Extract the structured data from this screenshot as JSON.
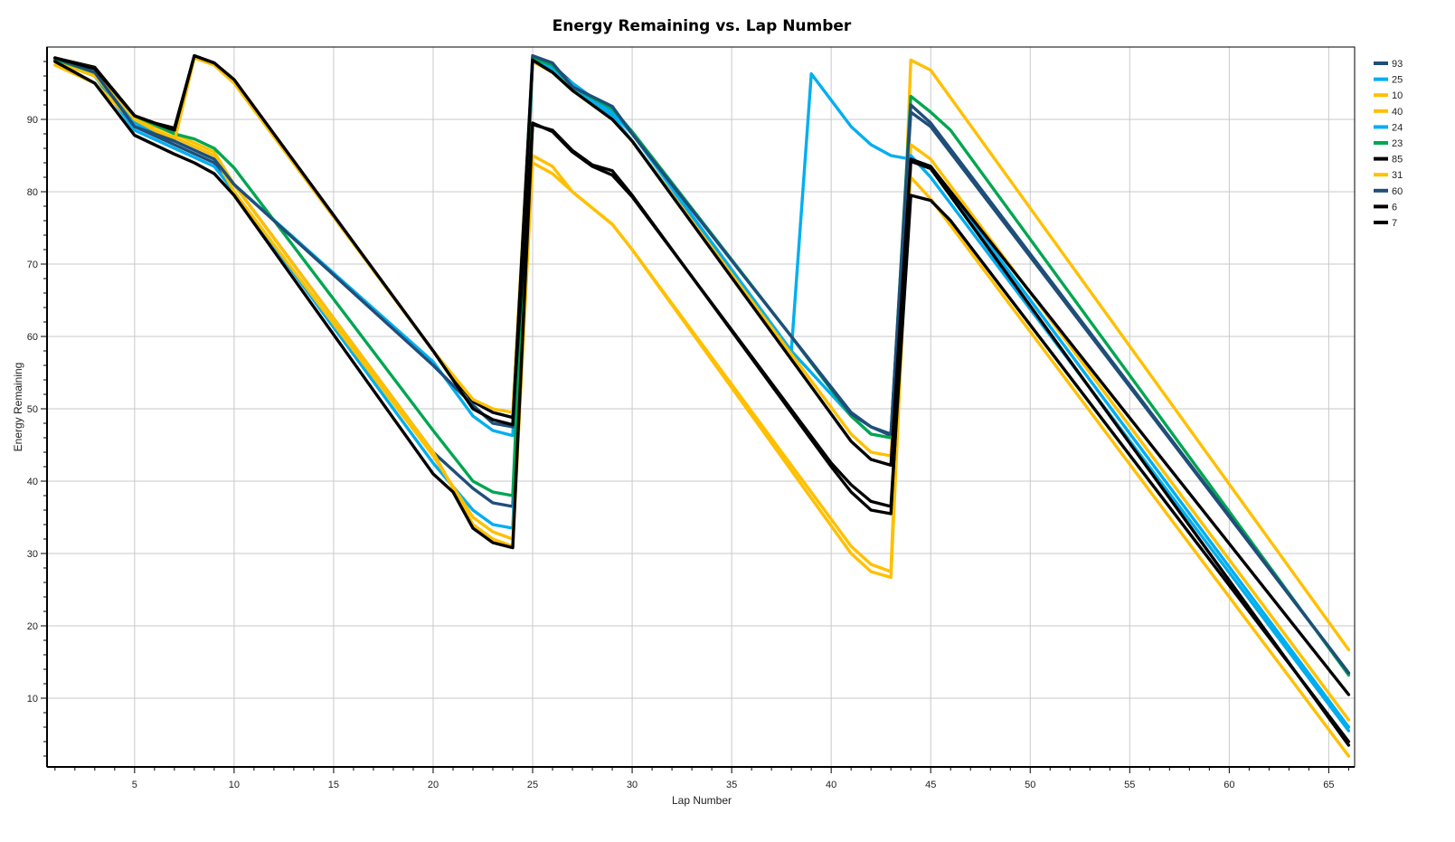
{
  "chart_data": {
    "type": "line",
    "title": "Energy Remaining vs. Lap Number",
    "xlabel": "Lap Number",
    "ylabel": "Energy Remaining",
    "xlim": [
      0.6,
      66.3
    ],
    "ylim": [
      0.5,
      100
    ],
    "xticks": [
      5,
      10,
      15,
      20,
      25,
      30,
      35,
      40,
      45,
      50,
      55,
      60,
      65
    ],
    "yticks": [
      10,
      20,
      30,
      40,
      50,
      60,
      70,
      80,
      90
    ],
    "grid": true,
    "legend_position": "right",
    "series": [
      {
        "name": "93",
        "color": "#1f4e79",
        "points": [
          [
            1,
            98.2
          ],
          [
            3,
            96.0
          ],
          [
            5,
            89.0
          ],
          [
            7,
            86.5
          ],
          [
            9,
            84.0
          ],
          [
            10,
            81
          ],
          [
            20,
            44
          ],
          [
            22,
            39.0
          ],
          [
            23,
            37.0
          ],
          [
            24,
            36.5
          ],
          [
            25,
            98.5
          ],
          [
            26,
            97.5
          ],
          [
            27,
            95.0
          ],
          [
            29,
            91.0
          ],
          [
            30,
            88
          ],
          [
            38,
            60
          ],
          [
            41,
            49.5
          ],
          [
            42,
            47.5
          ],
          [
            43,
            46.3
          ],
          [
            44,
            91.0
          ],
          [
            45,
            89.0
          ],
          [
            66,
            13.5
          ]
        ]
      },
      {
        "name": "25",
        "color": "#00aeef",
        "points": [
          [
            1,
            98.0
          ],
          [
            3,
            96.0
          ],
          [
            5,
            88.5
          ],
          [
            7,
            86.0
          ],
          [
            9,
            83.5
          ],
          [
            10,
            80
          ],
          [
            20,
            42.5
          ],
          [
            22,
            36.0
          ],
          [
            23,
            34.0
          ],
          [
            24,
            33.5
          ],
          [
            25,
            98.3
          ],
          [
            26,
            97.0
          ],
          [
            27,
            95.0
          ],
          [
            29,
            91.0
          ],
          [
            30,
            88
          ],
          [
            38,
            58.0
          ],
          [
            39,
            96.3
          ],
          [
            41,
            89.0
          ],
          [
            42,
            86.5
          ],
          [
            43,
            85.0
          ],
          [
            44,
            84.5
          ],
          [
            45,
            83.5
          ],
          [
            66,
            6.0
          ]
        ]
      },
      {
        "name": "10",
        "color": "#ffc000",
        "points": [
          [
            1,
            97.5
          ],
          [
            3,
            95.0
          ],
          [
            5,
            89.5
          ],
          [
            7,
            87.5
          ],
          [
            9,
            85.0
          ],
          [
            10,
            80
          ],
          [
            20,
            43.5
          ],
          [
            22,
            35.0
          ],
          [
            23,
            33.0
          ],
          [
            24,
            32.0
          ],
          [
            25,
            84.0
          ],
          [
            26,
            82.5
          ],
          [
            27,
            80.0
          ],
          [
            29,
            75.5
          ],
          [
            30,
            72
          ],
          [
            41,
            31.0
          ],
          [
            42,
            28.5
          ],
          [
            43,
            27.5
          ],
          [
            44,
            98.2
          ],
          [
            45,
            96.8
          ],
          [
            66,
            16.7
          ]
        ]
      },
      {
        "name": "40",
        "color": "#ffc000",
        "points": [
          [
            1,
            98.0
          ],
          [
            3,
            96.0
          ],
          [
            5,
            90.0
          ],
          [
            7,
            88.0
          ],
          [
            9,
            85.5
          ],
          [
            10,
            81
          ],
          [
            20,
            44
          ],
          [
            22,
            34.0
          ],
          [
            23,
            32.0
          ],
          [
            24,
            31.0
          ],
          [
            25,
            85.0
          ],
          [
            26,
            83.5
          ],
          [
            27,
            80.0
          ],
          [
            29,
            75.5
          ],
          [
            30,
            72
          ],
          [
            41,
            30.0
          ],
          [
            42,
            27.5
          ],
          [
            43,
            26.7
          ],
          [
            44,
            86.5
          ],
          [
            45,
            84.5
          ],
          [
            66,
            7.0
          ]
        ]
      },
      {
        "name": "24",
        "color": "#00aeef",
        "points": [
          [
            1,
            98.3
          ],
          [
            3,
            96.5
          ],
          [
            5,
            89.5
          ],
          [
            7,
            87.0
          ],
          [
            9,
            84.5
          ],
          [
            10,
            81
          ],
          [
            20,
            56.5
          ],
          [
            22,
            49.0
          ],
          [
            23,
            47.0
          ],
          [
            24,
            46.3
          ],
          [
            25,
            98.5
          ],
          [
            26,
            97.0
          ],
          [
            27,
            94.5
          ],
          [
            29,
            90.5
          ],
          [
            30,
            87
          ],
          [
            38,
            58.0
          ],
          [
            41,
            49.0
          ],
          [
            42,
            46.5
          ],
          [
            43,
            46.0
          ],
          [
            44,
            85.0
          ],
          [
            45,
            82.0
          ],
          [
            66,
            5.5
          ]
        ]
      },
      {
        "name": "23",
        "color": "#00a651",
        "points": [
          [
            1,
            98.3
          ],
          [
            3,
            96.5
          ],
          [
            5,
            90.5
          ],
          [
            7,
            88.0
          ],
          [
            8,
            87.3
          ],
          [
            9,
            86.0
          ],
          [
            10,
            83.3
          ],
          [
            20,
            47.0
          ],
          [
            22,
            40.0
          ],
          [
            23,
            38.5
          ],
          [
            24,
            38.0
          ],
          [
            25,
            98.5
          ],
          [
            26,
            97.5
          ],
          [
            27,
            94.5
          ],
          [
            29,
            91.5
          ],
          [
            30,
            88.3
          ],
          [
            38,
            60
          ],
          [
            41,
            49.0
          ],
          [
            42,
            46.5
          ],
          [
            43,
            46.0
          ],
          [
            44,
            93.2
          ],
          [
            45,
            91.0
          ],
          [
            46,
            88.5
          ],
          [
            66,
            13.2
          ]
        ]
      },
      {
        "name": "85",
        "color": "#000000",
        "points": [
          [
            1,
            98.5
          ],
          [
            3,
            97.2
          ],
          [
            5,
            90.5
          ],
          [
            6,
            89.5
          ],
          [
            7,
            88.8
          ],
          [
            8,
            98.8
          ],
          [
            9,
            97.8
          ],
          [
            10,
            95.3
          ],
          [
            20,
            58.0
          ],
          [
            22,
            51.0
          ],
          [
            23,
            49.5
          ],
          [
            24,
            48.8
          ],
          [
            25,
            89.3
          ],
          [
            26,
            88.5
          ],
          [
            27,
            85.7
          ],
          [
            28,
            83.7
          ],
          [
            29,
            82.9
          ],
          [
            30,
            79.5
          ],
          [
            40,
            42.0
          ],
          [
            41,
            38.5
          ],
          [
            42,
            36.0
          ],
          [
            43,
            35.5
          ],
          [
            44,
            84.2
          ],
          [
            45,
            83.2
          ],
          [
            66,
            3.5
          ]
        ]
      },
      {
        "name": "31",
        "color": "#ffc000",
        "points": [
          [
            1,
            98.5
          ],
          [
            3,
            97.0
          ],
          [
            5,
            90.0
          ],
          [
            7,
            87.0
          ],
          [
            8,
            98.5
          ],
          [
            9,
            97.5
          ],
          [
            10,
            95.0
          ],
          [
            20,
            58.0
          ],
          [
            22,
            51.3
          ],
          [
            23,
            50.0
          ],
          [
            24,
            49.5
          ],
          [
            25,
            98.0
          ],
          [
            26,
            96.5
          ],
          [
            27,
            94.0
          ],
          [
            29,
            90.0
          ],
          [
            30,
            87
          ],
          [
            41,
            46.5
          ],
          [
            42,
            44.0
          ],
          [
            43,
            43.5
          ],
          [
            44,
            82.0
          ],
          [
            45,
            79.0
          ],
          [
            66,
            2.0
          ]
        ]
      },
      {
        "name": "60",
        "color": "#1f4e79",
        "points": [
          [
            1,
            98.5
          ],
          [
            3,
            96.5
          ],
          [
            5,
            89.0
          ],
          [
            7,
            87.0
          ],
          [
            9,
            84.5
          ],
          [
            10,
            81
          ],
          [
            20,
            56
          ],
          [
            22,
            50.5
          ],
          [
            23,
            48.0
          ],
          [
            24,
            47.5
          ],
          [
            25,
            98.8
          ],
          [
            26,
            97.8
          ],
          [
            27,
            94.5
          ],
          [
            29,
            91.8
          ],
          [
            30,
            88
          ],
          [
            38,
            60
          ],
          [
            41,
            49.3
          ],
          [
            42,
            47.5
          ],
          [
            43,
            46.5
          ],
          [
            44,
            92.0
          ],
          [
            45,
            89.5
          ],
          [
            66,
            13.5
          ]
        ]
      },
      {
        "name": "6",
        "color": "#000000",
        "points": [
          [
            1,
            98.5
          ],
          [
            3,
            97.0
          ],
          [
            5,
            90.5
          ],
          [
            6,
            89.5
          ],
          [
            7,
            88.5
          ],
          [
            8,
            98.8
          ],
          [
            9,
            97.8
          ],
          [
            10,
            95.5
          ],
          [
            20,
            58.0
          ],
          [
            22,
            50.0
          ],
          [
            23,
            48.5
          ],
          [
            24,
            47.8
          ],
          [
            25,
            98.2
          ],
          [
            26,
            96.5
          ],
          [
            27,
            94.0
          ],
          [
            29,
            90.0
          ],
          [
            30,
            87
          ],
          [
            41,
            45.5
          ],
          [
            42,
            43.0
          ],
          [
            43,
            42.2
          ],
          [
            44,
            84.5
          ],
          [
            45,
            83.5
          ],
          [
            66,
            10.5
          ]
        ]
      },
      {
        "name": "7",
        "color": "#000000",
        "points": [
          [
            1,
            98.0
          ],
          [
            3,
            95.0
          ],
          [
            5,
            87.8
          ],
          [
            7,
            85.2
          ],
          [
            8,
            84.0
          ],
          [
            9,
            82.5
          ],
          [
            10,
            79.5
          ],
          [
            20,
            41.0
          ],
          [
            21,
            38.5
          ],
          [
            22,
            33.5
          ],
          [
            23,
            31.5
          ],
          [
            24,
            30.8
          ],
          [
            25,
            89.5
          ],
          [
            26,
            88.3
          ],
          [
            27,
            85.5
          ],
          [
            28,
            83.5
          ],
          [
            29,
            82.3
          ],
          [
            30,
            79.3
          ],
          [
            40,
            42.5
          ],
          [
            41,
            39.5
          ],
          [
            42,
            37.2
          ],
          [
            43,
            36.5
          ],
          [
            44,
            79.5
          ],
          [
            45,
            78.8
          ],
          [
            46,
            76
          ],
          [
            66,
            4.0
          ]
        ]
      }
    ]
  }
}
